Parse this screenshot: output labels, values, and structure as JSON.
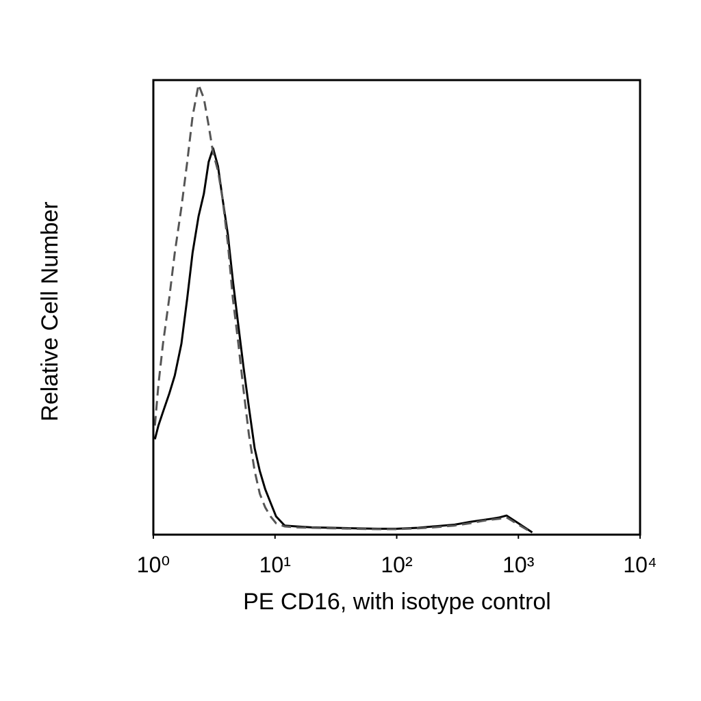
{
  "chart_data": {
    "type": "line",
    "xlabel": "PE CD16, with isotype control",
    "ylabel": "Relative Cell Number",
    "xscale": "log",
    "xlim": [
      1,
      10000
    ],
    "xticks": [
      {
        "value": 1,
        "label": "10⁰"
      },
      {
        "value": 10,
        "label": "10¹"
      },
      {
        "value": 100,
        "label": "10²"
      },
      {
        "value": 1000,
        "label": "10³"
      },
      {
        "value": 10000,
        "label": "10⁴"
      }
    ],
    "ylim": [
      0,
      100
    ],
    "grid": false,
    "x": [
      1.03,
      1.1,
      1.2,
      1.35,
      1.5,
      1.7,
      1.9,
      2.1,
      2.35,
      2.6,
      2.85,
      3.1,
      3.4,
      3.7,
      4.1,
      4.5,
      5,
      5.5,
      6.1,
      6.8,
      7.5,
      8.3,
      9.2,
      10.2,
      12,
      15,
      20,
      30,
      45,
      70,
      100,
      150,
      200,
      300,
      400,
      500,
      600,
      700,
      800,
      1000,
      1300
    ],
    "series": [
      {
        "color": "#000000",
        "linestyle": "solid",
        "values": [
          21,
          24,
          27,
          31,
          35,
          42,
          52,
          62,
          70,
          75,
          82,
          85,
          81,
          74,
          66,
          56,
          46,
          37,
          28,
          19,
          14,
          10,
          7,
          4,
          2,
          1.8,
          1.6,
          1.5,
          1.4,
          1.3,
          1.3,
          1.5,
          1.8,
          2.2,
          2.8,
          3.2,
          3.5,
          3.8,
          4.2,
          2.5,
          0.5
        ]
      },
      {
        "color": "#555555",
        "linestyle": "dashed",
        "values": [
          24,
          33,
          42,
          52,
          62,
          72,
          82,
          92,
          99,
          96,
          90,
          84,
          80,
          74,
          64,
          52,
          42,
          32,
          22,
          14,
          9,
          6,
          4,
          2.5,
          1.8,
          1.6,
          1.5,
          1.4,
          1.3,
          1.2,
          1.2,
          1.4,
          1.6,
          2.0,
          2.5,
          3.0,
          3.3,
          3.5,
          3.8,
          2.2,
          0.4
        ]
      }
    ]
  }
}
